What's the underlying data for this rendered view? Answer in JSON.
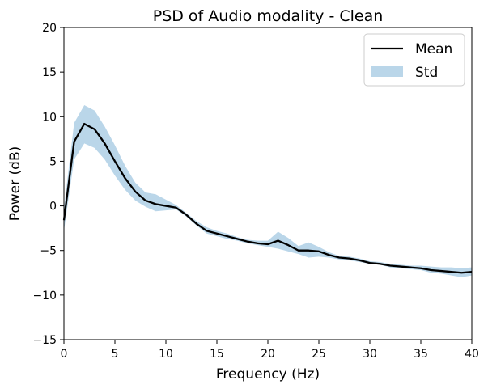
{
  "chart_data": {
    "type": "line",
    "title": "PSD of Audio modality - Clean",
    "xlabel": "Frequency (Hz)",
    "ylabel": "Power (dB)",
    "xlim": [
      0,
      40
    ],
    "ylim": [
      -15,
      20
    ],
    "xticks": [
      0,
      5,
      10,
      15,
      20,
      25,
      30,
      35,
      40
    ],
    "yticks": [
      -15,
      -10,
      -5,
      0,
      5,
      10,
      15,
      20
    ],
    "xtick_labels": [
      "0",
      "5",
      "10",
      "15",
      "20",
      "25",
      "30",
      "35",
      "40"
    ],
    "ytick_labels": [
      "−15",
      "−10",
      "−5",
      "0",
      "5",
      "10",
      "15",
      "20"
    ],
    "grid": false,
    "legend_position": "top-right",
    "series": [
      {
        "name": "Mean",
        "type": "line",
        "color": "#000000",
        "x": [
          0,
          1,
          2,
          3,
          4,
          5,
          6,
          7,
          8,
          9,
          10,
          11,
          12,
          13,
          14,
          15,
          16,
          17,
          18,
          19,
          20,
          21,
          22,
          23,
          24,
          25,
          26,
          27,
          28,
          29,
          30,
          31,
          32,
          33,
          34,
          35,
          36,
          37,
          38,
          39,
          40
        ],
        "y": [
          -1.6,
          7.2,
          9.2,
          8.6,
          7.0,
          5.0,
          3.1,
          1.6,
          0.6,
          0.2,
          0.0,
          -0.2,
          -1.0,
          -2.0,
          -2.8,
          -3.1,
          -3.4,
          -3.7,
          -4.0,
          -4.2,
          -4.3,
          -3.9,
          -4.4,
          -5.0,
          -5.0,
          -5.1,
          -5.5,
          -5.8,
          -5.9,
          -6.1,
          -6.4,
          -6.5,
          -6.7,
          -6.8,
          -6.9,
          -7.0,
          -7.2,
          -7.3,
          -7.4,
          -7.5,
          -7.4
        ]
      },
      {
        "name": "Std",
        "type": "band",
        "color": "#a9cce3",
        "x": [
          0,
          1,
          2,
          3,
          4,
          5,
          6,
          7,
          8,
          9,
          10,
          11,
          12,
          13,
          14,
          15,
          16,
          17,
          18,
          19,
          20,
          21,
          22,
          23,
          24,
          25,
          26,
          27,
          28,
          29,
          30,
          31,
          32,
          33,
          34,
          35,
          36,
          37,
          38,
          39,
          40
        ],
        "upper": [
          -0.3,
          9.3,
          11.3,
          10.7,
          8.9,
          6.8,
          4.5,
          2.6,
          1.5,
          1.3,
          0.7,
          0.1,
          -0.8,
          -1.7,
          -2.4,
          -2.8,
          -3.1,
          -3.5,
          -3.8,
          -3.9,
          -3.9,
          -2.9,
          -3.6,
          -4.5,
          -4.1,
          -4.6,
          -5.2,
          -5.6,
          -5.7,
          -5.9,
          -6.2,
          -6.3,
          -6.5,
          -6.6,
          -6.7,
          -6.7,
          -6.8,
          -6.9,
          -6.9,
          -7.0,
          -6.9
        ],
        "lower": [
          -2.8,
          5.2,
          7.0,
          6.5,
          5.2,
          3.4,
          1.8,
          0.6,
          -0.1,
          -0.6,
          -0.5,
          -0.4,
          -1.2,
          -2.2,
          -3.1,
          -3.4,
          -3.7,
          -3.9,
          -4.2,
          -4.4,
          -4.6,
          -4.8,
          -5.1,
          -5.4,
          -5.8,
          -5.7,
          -5.8,
          -6.0,
          -6.1,
          -6.3,
          -6.5,
          -6.6,
          -6.9,
          -7.0,
          -7.1,
          -7.2,
          -7.5,
          -7.6,
          -7.8,
          -8.0,
          -7.8
        ]
      }
    ]
  }
}
